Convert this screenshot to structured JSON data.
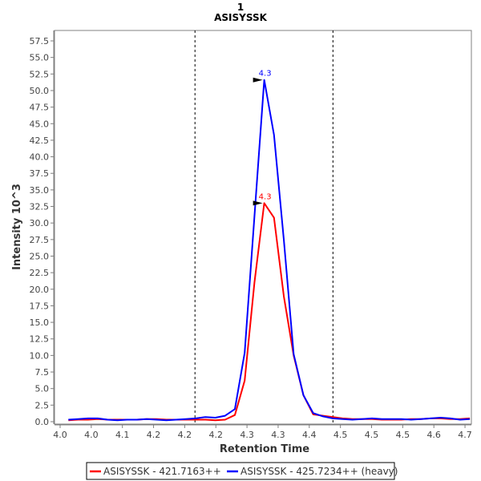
{
  "chart_data": {
    "type": "line",
    "title": "1",
    "subtitle": "ASISYSSK",
    "xlabel": "Retention Time",
    "ylabel": "Intensity 10^3",
    "xlim": [
      3.985,
      4.66
    ],
    "ylim": [
      0,
      59.1
    ],
    "x_ticks": [
      4.0,
      4.05,
      4.1,
      4.15,
      4.2,
      4.25,
      4.3,
      4.35,
      4.4,
      4.45,
      4.5,
      4.55,
      4.6,
      4.65
    ],
    "x_tick_labels": [
      "4.0",
      "4.0",
      "4.1",
      "4.2",
      "4.2",
      "4.2",
      "4.3",
      "4.3",
      "4.4",
      "4.5",
      "4.5",
      "4.5",
      "4.6",
      "4.7"
    ],
    "y_ticks": [
      0,
      2.5,
      5,
      7.5,
      10,
      12.5,
      15,
      17.5,
      20,
      22.5,
      25,
      27.5,
      30,
      32.5,
      35,
      37.5,
      40,
      42.5,
      45,
      47.5,
      50,
      52.5,
      55,
      57.5
    ],
    "y_tick_labels": [
      "0.0",
      "2.5",
      "5.0",
      "7.5",
      "10.0",
      "12.5",
      "15.0",
      "17.5",
      "20.0",
      "22.5",
      "25.0",
      "27.5",
      "30.0",
      "32.5",
      "35.0",
      "37.5",
      "40.0",
      "42.5",
      "45.0",
      "47.5",
      "50.0",
      "52.5",
      "55.0",
      "57.5"
    ],
    "grid": false,
    "x_start": 4.0133,
    "x_step": 0.01572,
    "boundaries": [
      4.2165,
      4.438
    ],
    "legend_position": "bottom",
    "series": [
      {
        "name": "ASISYSSK - 421.7163++",
        "color": "#ff0000",
        "values": [
          0.2,
          0.3,
          0.3,
          0.4,
          0.3,
          0.3,
          0.3,
          0.3,
          0.4,
          0.4,
          0.3,
          0.3,
          0.3,
          0.3,
          0.3,
          0.2,
          0.3,
          1.0,
          6.2,
          21.0,
          33.0,
          30.8,
          18.9,
          10.0,
          4.0,
          1.1,
          0.9,
          0.7,
          0.5,
          0.4,
          0.4,
          0.4,
          0.3,
          0.3,
          0.3,
          0.4,
          0.4,
          0.5,
          0.5,
          0.4,
          0.4,
          0.5
        ],
        "peak_label": "4.3",
        "peak_index": 20
      },
      {
        "name": "ASISYSSK - 425.7234++ (heavy)",
        "color": "#0000ff",
        "values": [
          0.3,
          0.4,
          0.5,
          0.5,
          0.3,
          0.2,
          0.3,
          0.3,
          0.4,
          0.3,
          0.2,
          0.3,
          0.4,
          0.5,
          0.7,
          0.6,
          0.9,
          1.9,
          10.4,
          31.0,
          51.6,
          43.3,
          27.4,
          10.2,
          4.0,
          1.3,
          0.8,
          0.5,
          0.4,
          0.3,
          0.4,
          0.5,
          0.4,
          0.4,
          0.4,
          0.3,
          0.4,
          0.5,
          0.6,
          0.5,
          0.3,
          0.4
        ],
        "peak_label": "4.3",
        "peak_index": 20
      }
    ]
  }
}
